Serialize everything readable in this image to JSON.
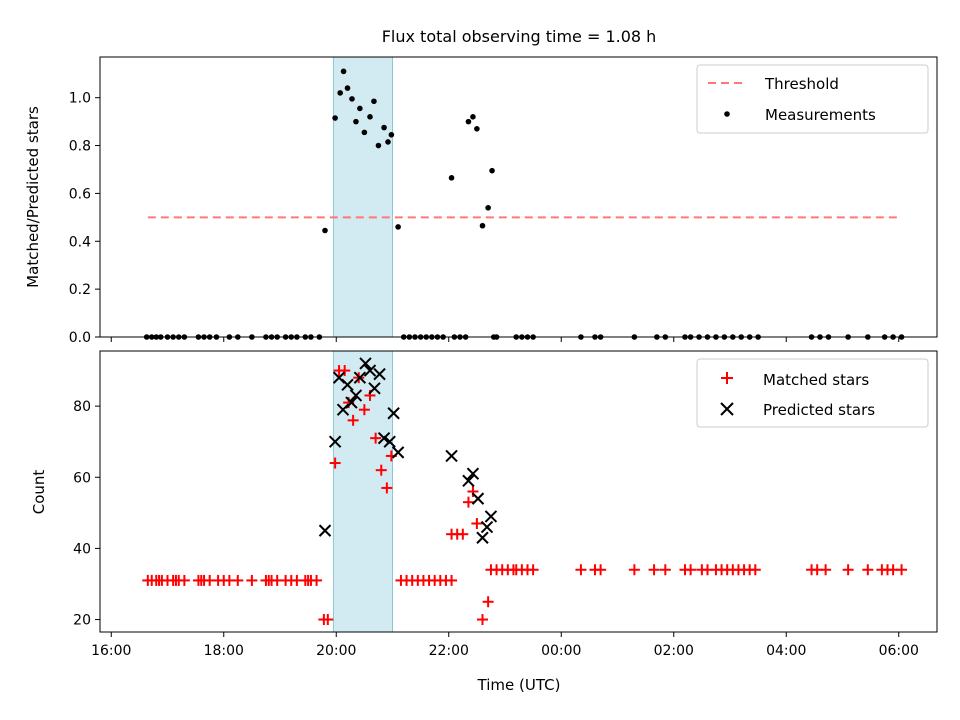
{
  "chart_data": [
    {
      "type": "scatter",
      "title": "Flux total observing time = 1.08 h",
      "xlabel": "",
      "ylabel": "Matched/Predicted stars",
      "x_range_hours": [
        15.8,
        30.68
      ],
      "ylim": [
        0,
        1.17
      ],
      "yticks": [
        0.0,
        0.2,
        0.4,
        0.6,
        0.8,
        1.0
      ],
      "ytick_labels": [
        "0.0",
        "0.2",
        "0.4",
        "0.6",
        "0.8",
        "1.0"
      ],
      "shaded_span_hours": [
        19.95,
        21.0
      ],
      "shaded_color": "#add8e6",
      "threshold": {
        "name": "Threshold",
        "value": 0.5,
        "x_range_hours": [
          16.65,
          30.0
        ],
        "color": "#ff7777"
      },
      "legend": {
        "position": "top-right",
        "entries": [
          "Threshold",
          "Measurements"
        ]
      },
      "series": [
        {
          "name": "Measurements",
          "color": "#000000",
          "points": [
            [
              16.63,
              0
            ],
            [
              16.72,
              0
            ],
            [
              16.8,
              0
            ],
            [
              16.88,
              0
            ],
            [
              17.0,
              0
            ],
            [
              17.1,
              0
            ],
            [
              17.2,
              0
            ],
            [
              17.3,
              0
            ],
            [
              17.55,
              0
            ],
            [
              17.65,
              0
            ],
            [
              17.75,
              0
            ],
            [
              17.87,
              0
            ],
            [
              18.1,
              0
            ],
            [
              18.25,
              0
            ],
            [
              18.5,
              0
            ],
            [
              18.75,
              0
            ],
            [
              18.85,
              0
            ],
            [
              18.95,
              0
            ],
            [
              19.1,
              0
            ],
            [
              19.2,
              0
            ],
            [
              19.3,
              0
            ],
            [
              19.45,
              0
            ],
            [
              19.55,
              0
            ],
            [
              19.7,
              0
            ],
            [
              19.8,
              0.445
            ],
            [
              19.98,
              0.915
            ],
            [
              20.07,
              1.02
            ],
            [
              20.13,
              1.11
            ],
            [
              20.2,
              1.04
            ],
            [
              20.28,
              0.995
            ],
            [
              20.35,
              0.9
            ],
            [
              20.42,
              0.955
            ],
            [
              20.5,
              0.855
            ],
            [
              20.6,
              0.92
            ],
            [
              20.67,
              0.985
            ],
            [
              20.75,
              0.8
            ],
            [
              20.85,
              0.875
            ],
            [
              20.92,
              0.815
            ],
            [
              20.98,
              0.845
            ],
            [
              21.1,
              0.46
            ],
            [
              21.2,
              0
            ],
            [
              21.3,
              0
            ],
            [
              21.4,
              0
            ],
            [
              21.5,
              0
            ],
            [
              21.6,
              0
            ],
            [
              21.7,
              0
            ],
            [
              21.8,
              0
            ],
            [
              21.9,
              0
            ],
            [
              22.1,
              0
            ],
            [
              22.2,
              0
            ],
            [
              22.3,
              0
            ],
            [
              22.05,
              0.665
            ],
            [
              22.35,
              0.9
            ],
            [
              22.43,
              0.92
            ],
            [
              22.5,
              0.87
            ],
            [
              22.6,
              0.465
            ],
            [
              22.7,
              0.54
            ],
            [
              22.77,
              0.695
            ],
            [
              22.8,
              0
            ],
            [
              22.85,
              0
            ],
            [
              23.2,
              0
            ],
            [
              23.3,
              0
            ],
            [
              23.4,
              0
            ],
            [
              23.5,
              0
            ],
            [
              24.35,
              0
            ],
            [
              24.6,
              0
            ],
            [
              24.7,
              0
            ],
            [
              25.3,
              0
            ],
            [
              25.7,
              0
            ],
            [
              25.85,
              0
            ],
            [
              26.2,
              0
            ],
            [
              26.3,
              0
            ],
            [
              26.45,
              0
            ],
            [
              26.6,
              0
            ],
            [
              26.75,
              0
            ],
            [
              26.9,
              0
            ],
            [
              27.05,
              0
            ],
            [
              27.2,
              0
            ],
            [
              27.35,
              0
            ],
            [
              27.5,
              0
            ],
            [
              28.45,
              0
            ],
            [
              28.6,
              0
            ],
            [
              28.75,
              0
            ],
            [
              29.1,
              0
            ],
            [
              29.45,
              0
            ],
            [
              29.75,
              0
            ],
            [
              29.9,
              0
            ],
            [
              30.05,
              0
            ]
          ]
        }
      ]
    },
    {
      "type": "scatter",
      "title": "",
      "xlabel": "Time (UTC)",
      "ylabel": "Count",
      "x_range_hours": [
        15.8,
        30.68
      ],
      "ylim": [
        16.5,
        95.5
      ],
      "yticks": [
        20,
        40,
        60,
        80
      ],
      "ytick_labels": [
        "20",
        "40",
        "60",
        "80"
      ],
      "xticks_hours": [
        16,
        18,
        20,
        22,
        24,
        26,
        28,
        30
      ],
      "xtick_labels": [
        "16:00",
        "18:00",
        "20:00",
        "22:00",
        "00:00",
        "02:00",
        "04:00",
        "06:00"
      ],
      "shaded_span_hours": [
        19.95,
        21.0
      ],
      "shaded_color": "#add8e6",
      "legend": {
        "position": "top-right",
        "entries": [
          "Matched stars",
          "Predicted stars"
        ]
      },
      "series": [
        {
          "name": "Matched stars",
          "marker": "plus",
          "color": "#ff0000",
          "points": [
            [
              16.65,
              31
            ],
            [
              16.72,
              31
            ],
            [
              16.8,
              31
            ],
            [
              16.85,
              31
            ],
            [
              16.9,
              31
            ],
            [
              17.0,
              31
            ],
            [
              17.1,
              31
            ],
            [
              17.15,
              31
            ],
            [
              17.2,
              31
            ],
            [
              17.3,
              31
            ],
            [
              17.55,
              31
            ],
            [
              17.6,
              31
            ],
            [
              17.65,
              31
            ],
            [
              17.75,
              31
            ],
            [
              17.9,
              31
            ],
            [
              18.0,
              31
            ],
            [
              18.1,
              31
            ],
            [
              18.25,
              31
            ],
            [
              18.5,
              31
            ],
            [
              18.75,
              31
            ],
            [
              18.8,
              31
            ],
            [
              18.85,
              31
            ],
            [
              18.95,
              31
            ],
            [
              19.1,
              31
            ],
            [
              19.2,
              31
            ],
            [
              19.3,
              31
            ],
            [
              19.45,
              31
            ],
            [
              19.5,
              31
            ],
            [
              19.55,
              31
            ],
            [
              19.65,
              31
            ],
            [
              19.78,
              20
            ],
            [
              19.85,
              20
            ],
            [
              19.98,
              64
            ],
            [
              20.05,
              90
            ],
            [
              20.15,
              90
            ],
            [
              20.22,
              81
            ],
            [
              20.3,
              76
            ],
            [
              20.4,
              88
            ],
            [
              20.5,
              79
            ],
            [
              20.6,
              83
            ],
            [
              20.7,
              71
            ],
            [
              20.8,
              62
            ],
            [
              20.9,
              57
            ],
            [
              20.98,
              66
            ],
            [
              21.15,
              31
            ],
            [
              21.25,
              31
            ],
            [
              21.35,
              31
            ],
            [
              21.45,
              31
            ],
            [
              21.55,
              31
            ],
            [
              21.65,
              31
            ],
            [
              21.75,
              31
            ],
            [
              21.85,
              31
            ],
            [
              21.95,
              31
            ],
            [
              22.05,
              31
            ],
            [
              22.05,
              44
            ],
            [
              22.15,
              44
            ],
            [
              22.25,
              44
            ],
            [
              22.35,
              53
            ],
            [
              22.43,
              56
            ],
            [
              22.5,
              47
            ],
            [
              22.6,
              20
            ],
            [
              22.7,
              25
            ],
            [
              22.75,
              34
            ],
            [
              22.85,
              34
            ],
            [
              22.95,
              34
            ],
            [
              23.05,
              34
            ],
            [
              23.15,
              34
            ],
            [
              23.2,
              34
            ],
            [
              23.3,
              34
            ],
            [
              23.4,
              34
            ],
            [
              23.5,
              34
            ],
            [
              24.35,
              34
            ],
            [
              24.6,
              34
            ],
            [
              24.7,
              34
            ],
            [
              25.3,
              34
            ],
            [
              25.65,
              34
            ],
            [
              25.85,
              34
            ],
            [
              26.2,
              34
            ],
            [
              26.3,
              34
            ],
            [
              26.5,
              34
            ],
            [
              26.6,
              34
            ],
            [
              26.75,
              34
            ],
            [
              26.85,
              34
            ],
            [
              26.95,
              34
            ],
            [
              27.05,
              34
            ],
            [
              27.15,
              34
            ],
            [
              27.25,
              34
            ],
            [
              27.35,
              34
            ],
            [
              27.45,
              34
            ],
            [
              28.45,
              34
            ],
            [
              28.55,
              34
            ],
            [
              28.7,
              34
            ],
            [
              29.1,
              34
            ],
            [
              29.45,
              34
            ],
            [
              29.7,
              34
            ],
            [
              29.8,
              34
            ],
            [
              29.9,
              34
            ],
            [
              30.05,
              34
            ]
          ]
        },
        {
          "name": "Predicted stars",
          "marker": "x",
          "color": "#000000",
          "points": [
            [
              19.8,
              45
            ],
            [
              19.98,
              70
            ],
            [
              20.05,
              88
            ],
            [
              20.12,
              79
            ],
            [
              20.2,
              86
            ],
            [
              20.27,
              81
            ],
            [
              20.35,
              83
            ],
            [
              20.42,
              88
            ],
            [
              20.52,
              92
            ],
            [
              20.6,
              90
            ],
            [
              20.68,
              85
            ],
            [
              20.77,
              89
            ],
            [
              20.85,
              71
            ],
            [
              20.95,
              70
            ],
            [
              21.02,
              78
            ],
            [
              21.1,
              67
            ],
            [
              22.05,
              66
            ],
            [
              22.35,
              59
            ],
            [
              22.43,
              61
            ],
            [
              22.52,
              54
            ],
            [
              22.6,
              43
            ],
            [
              22.68,
              46
            ],
            [
              22.75,
              49
            ]
          ]
        }
      ]
    }
  ]
}
